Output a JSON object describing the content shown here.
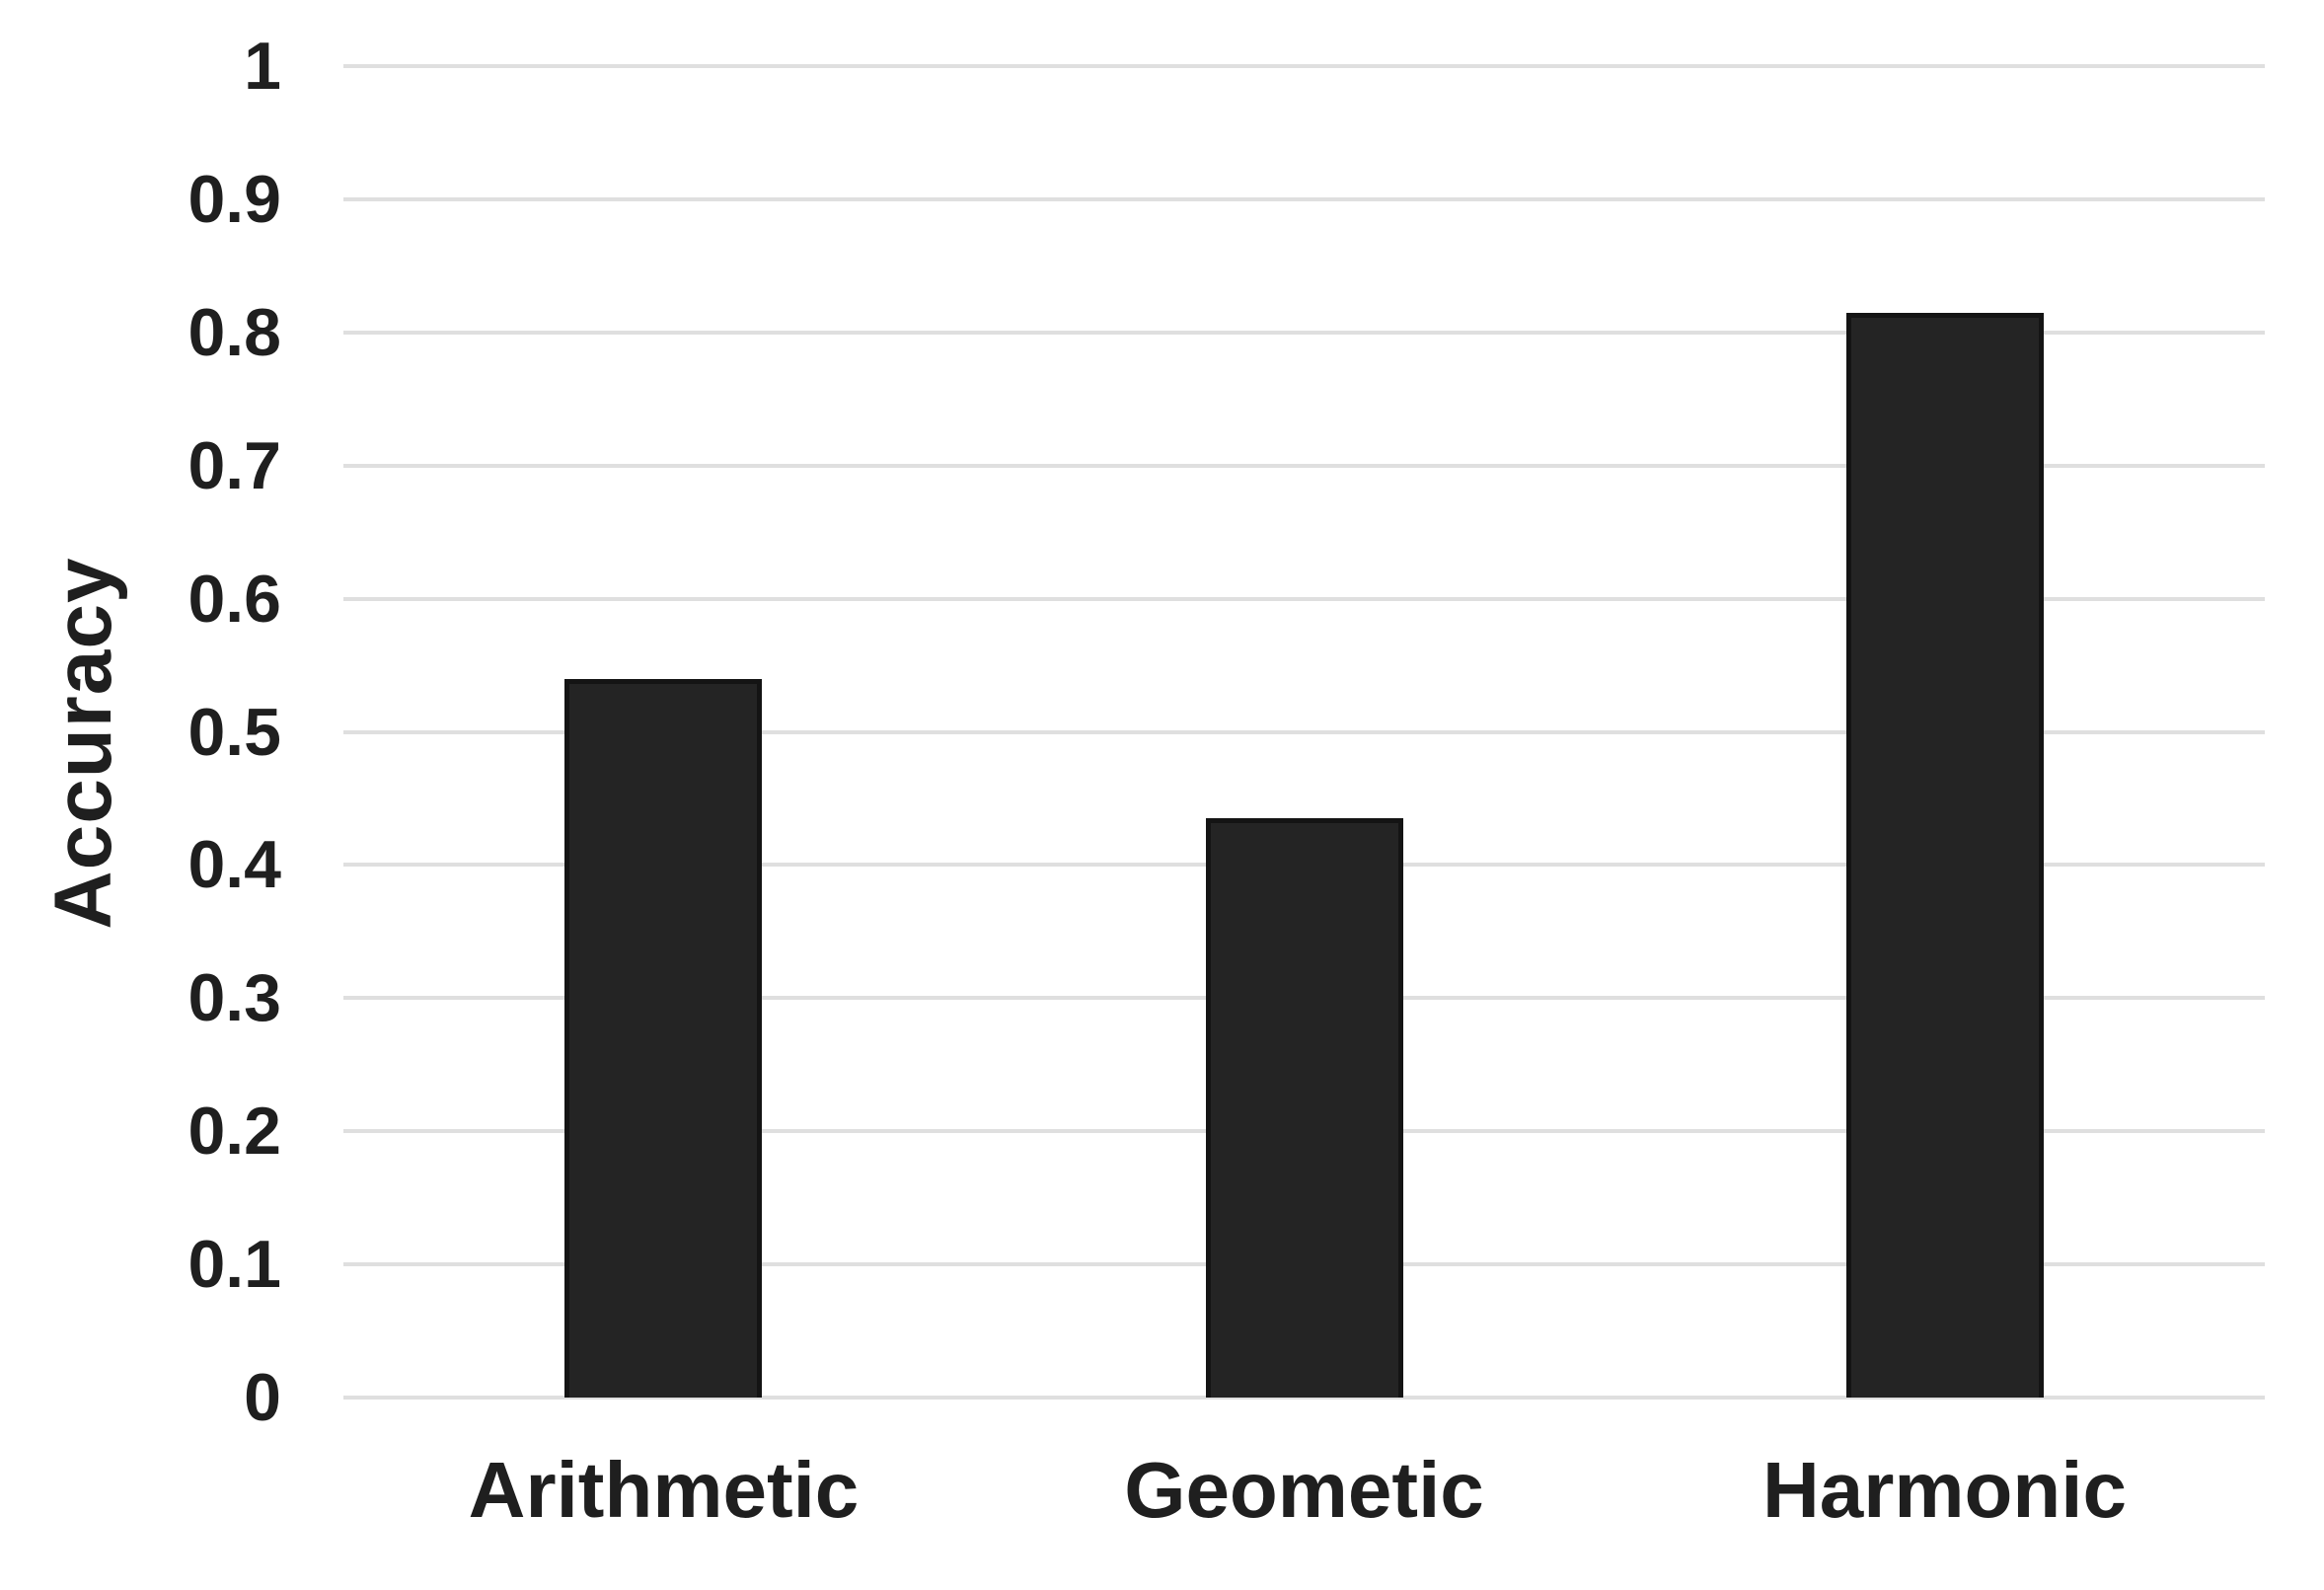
{
  "chart_data": {
    "type": "bar",
    "title": "",
    "categories": [
      "Arithmetic",
      "Geometic",
      "Harmonic"
    ],
    "values": [
      0.54,
      0.435,
      0.815
    ],
    "series_name": "Accuracy",
    "xlabel": "",
    "ylabel": "Accuracy",
    "ylim": [
      0,
      1
    ],
    "ytick_step": 0.1,
    "ytick_labels": [
      "0",
      "0.1",
      "0.2",
      "0.3",
      "0.4",
      "0.5",
      "0.6",
      "0.7",
      "0.8",
      "0.9",
      "1"
    ],
    "grid": true,
    "gridline_orientation": "horizontal",
    "legend": false,
    "colors": {
      "bar_fill": "#242424",
      "bar_border": "#141414",
      "gridline": "#dfdfdf",
      "text": "#1f1f1f",
      "background": "#ffffff"
    }
  }
}
